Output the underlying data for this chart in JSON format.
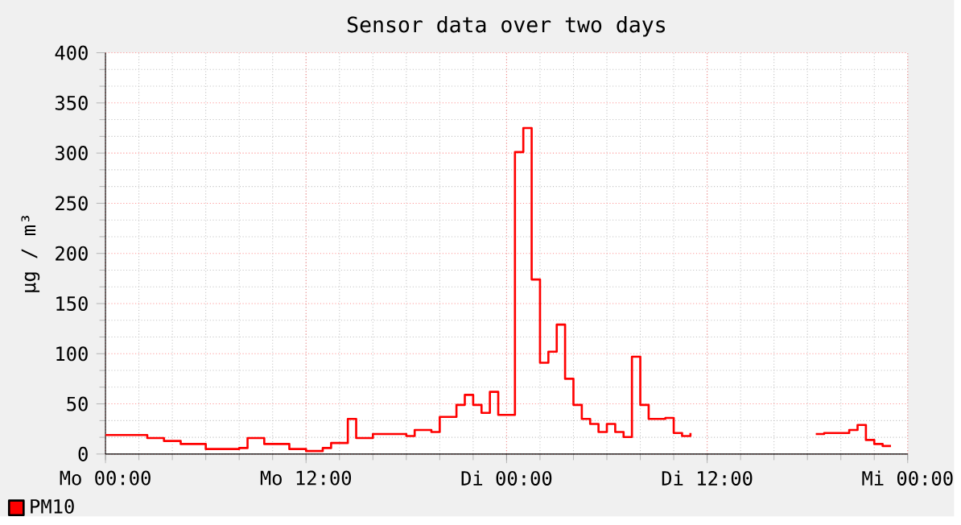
{
  "chart_data": {
    "type": "step",
    "title": "Sensor data over two days",
    "ylabel": "µg / m³",
    "categories": [
      "Mo 00:00",
      null,
      null,
      null,
      null,
      null,
      null,
      null,
      null,
      null,
      null,
      null,
      null,
      null,
      null,
      null,
      null,
      null,
      null,
      null,
      null,
      null,
      null,
      null,
      "Mo 12:00",
      null,
      null,
      null,
      null,
      null,
      null,
      null,
      null,
      null,
      null,
      null,
      null,
      null,
      null,
      null,
      null,
      null,
      null,
      null,
      null,
      null,
      null,
      null,
      "Di 00:00",
      null,
      null,
      null,
      null,
      null,
      null,
      null,
      null,
      null,
      null,
      null,
      null,
      null,
      null,
      null,
      null,
      null,
      null,
      null,
      null,
      null,
      null,
      null,
      "Di 12:00",
      null,
      null,
      null,
      null,
      null,
      null,
      null,
      null,
      null,
      null,
      null,
      null,
      null,
      null,
      null,
      null,
      null,
      null,
      null,
      null,
      null,
      null,
      null,
      "Mi 00:00"
    ],
    "ylim": [
      0,
      400
    ],
    "yticks": [
      0,
      50,
      100,
      150,
      200,
      250,
      300,
      350,
      400
    ],
    "grid": true,
    "legend": "bottom left",
    "marker": "none",
    "line_style": "solid",
    "series": [
      {
        "name": "PM10",
        "color": "#ff0000",
        "values": [
          19,
          19,
          19,
          19,
          19,
          16,
          16,
          13,
          13,
          10,
          10,
          10,
          5,
          5,
          5,
          5,
          6,
          16,
          16,
          10,
          10,
          10,
          5,
          5,
          3,
          3,
          6,
          11,
          11,
          35,
          16,
          16,
          20,
          20,
          20,
          20,
          18,
          24,
          24,
          22,
          37,
          37,
          49,
          59,
          49,
          41,
          62,
          39,
          39,
          301,
          325,
          174,
          91,
          102,
          129,
          75,
          49,
          35,
          30,
          22,
          30,
          22,
          17,
          97,
          49,
          35,
          35,
          36,
          21,
          18,
          21,
          null,
          null,
          null,
          null,
          null,
          null,
          null,
          null,
          null,
          null,
          null,
          null,
          null,
          null,
          20,
          21,
          21,
          21,
          24,
          29,
          14,
          10,
          8,
          8,
          null,
          null
        ]
      }
    ]
  }
}
